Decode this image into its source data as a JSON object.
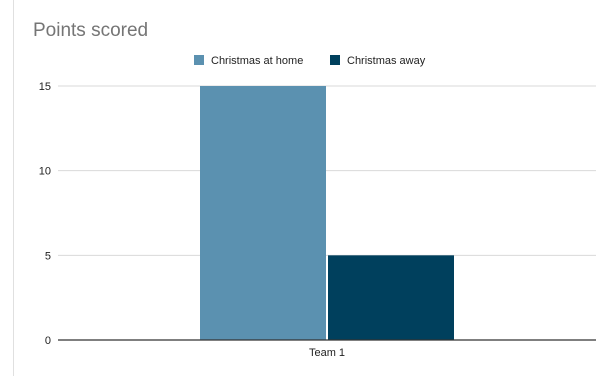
{
  "chart_data": {
    "type": "bar",
    "title": "Points scored",
    "categories": [
      "Team 1"
    ],
    "series": [
      {
        "name": "Christmas at home",
        "values": [
          15
        ],
        "color": "#5b91b0"
      },
      {
        "name": "Christmas away",
        "values": [
          5
        ],
        "color": "#00405d"
      }
    ],
    "xlabel": "",
    "ylabel": "",
    "ylim": [
      0,
      15
    ],
    "yticks": [
      0,
      5,
      10,
      15
    ],
    "grid": true,
    "legend_position": "top-center"
  }
}
